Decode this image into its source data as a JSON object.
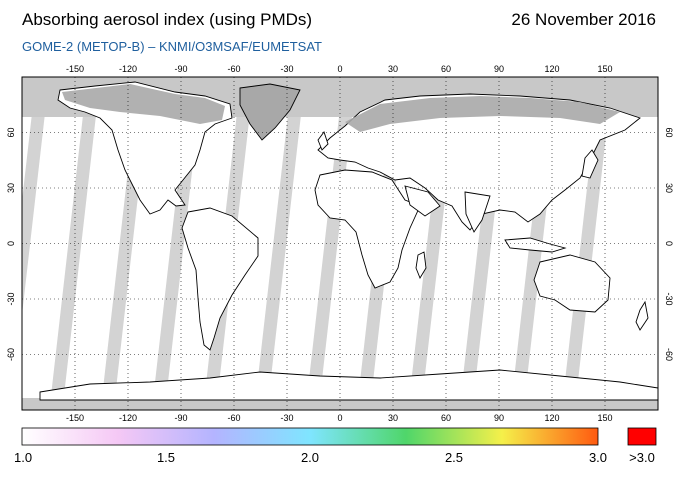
{
  "header": {
    "title": "Absorbing aerosol index (using PMDs)",
    "date": "26 November 2016",
    "subtitle": "GOME-2 (METOP-B)  –  KNMI/O3MSAF/EUMETSAT"
  },
  "map": {
    "longitude_ticks": [
      "-150",
      "-120",
      "-90",
      "-60",
      "-30",
      "0",
      "30",
      "60",
      "90",
      "120",
      "150"
    ],
    "latitude_ticks": [
      "60",
      "30",
      "0",
      "-30",
      "-60"
    ],
    "colors": {
      "ocean": "#ffffff",
      "land_fill": "#ffffff",
      "coastline": "#000000",
      "no_data_band": "#d3d3d3",
      "no_data_land": "#a8a8a8",
      "polar_cap": "#c8c8c8"
    }
  },
  "colorbar": {
    "labels": [
      "1.0",
      "1.5",
      "2.0",
      "2.5",
      "3.0"
    ],
    "overflow_label": ">3.0",
    "overflow_color": "#ff0000",
    "stops": [
      "#ffffff",
      "#f5c8f5",
      "#b4b4ff",
      "#7fe5ff",
      "#4fd66a",
      "#f5f04a",
      "#ff5a10"
    ]
  }
}
